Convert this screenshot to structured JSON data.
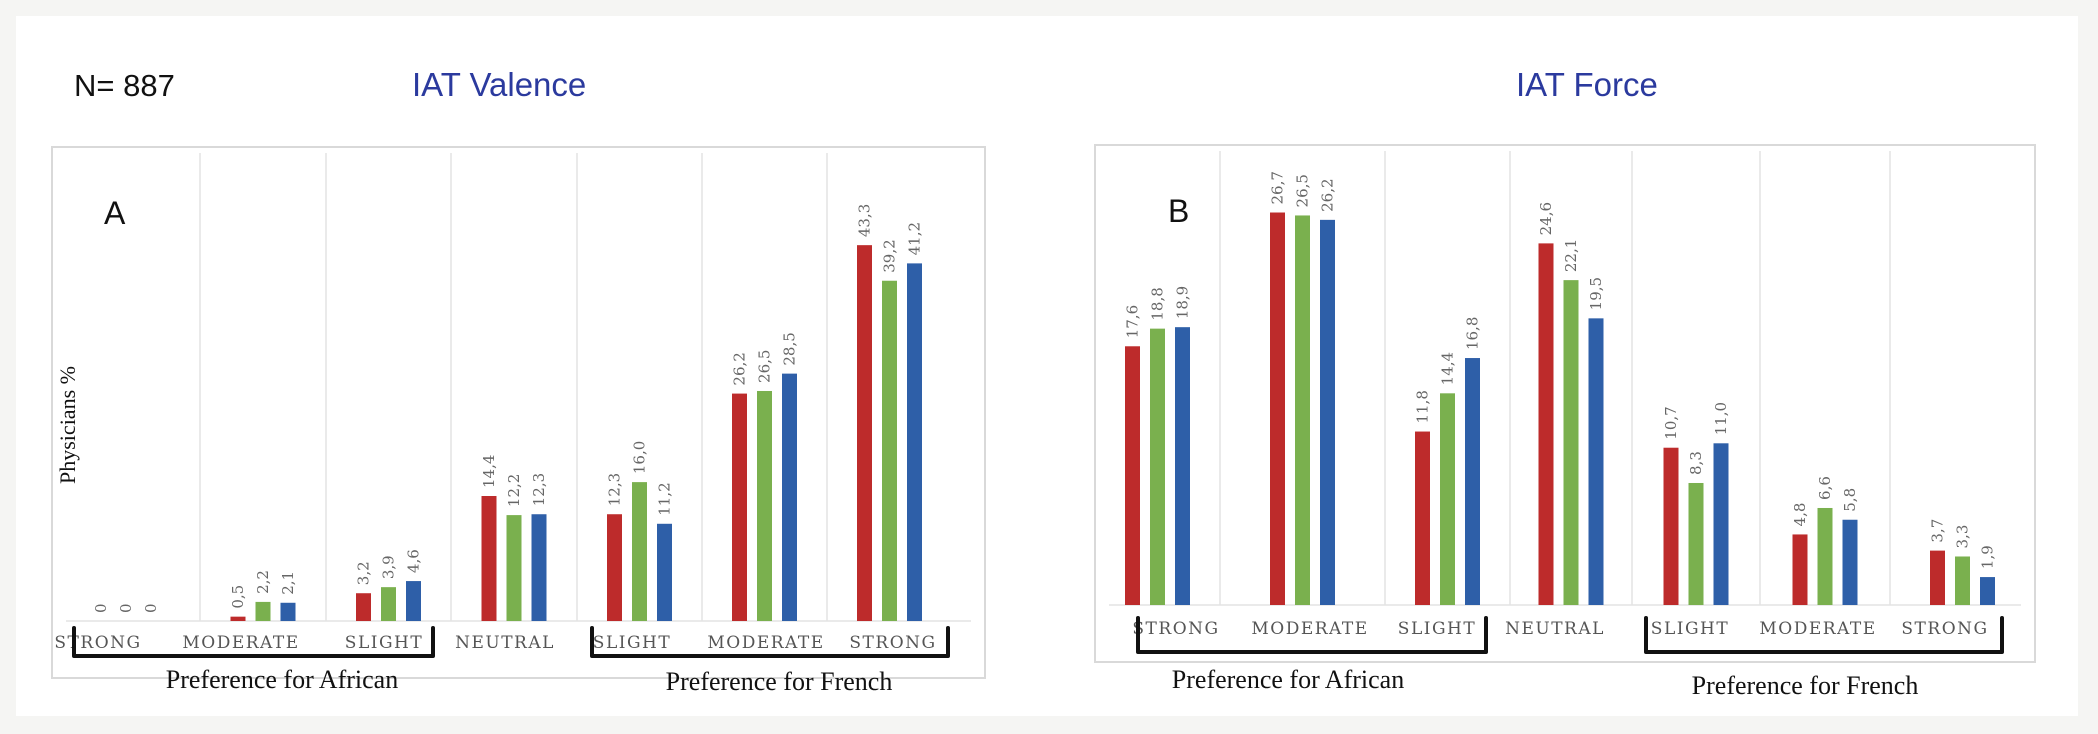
{
  "header": {
    "n_label": "N= 887",
    "title_a": "IAT Valence",
    "title_b": "IAT Force"
  },
  "colors": {
    "series": [
      "#bd2b2b",
      "#7ab04e",
      "#2e5fa8"
    ]
  },
  "chart_data": [
    {
      "type": "bar",
      "panel": "A",
      "title": "IAT Valence",
      "ylabel": "Physicians %",
      "categories": [
        "STRONG",
        "MODERATE",
        "SLIGHT",
        "NEUTRAL",
        "SLIGHT",
        "MODERATE",
        "STRONG"
      ],
      "groups": [
        "Preference for African",
        "Preference for French"
      ],
      "series": [
        {
          "values": [
            0,
            0.5,
            3.2,
            14.4,
            12.3,
            26.2,
            43.3
          ],
          "labels": [
            "0",
            "0,5",
            "3,2",
            "14,4",
            "12,3",
            "26,2",
            "43,3"
          ]
        },
        {
          "values": [
            0,
            2.2,
            3.9,
            12.2,
            16.0,
            26.5,
            39.2
          ],
          "labels": [
            "0",
            "2,2",
            "3,9",
            "12,2",
            "16,0",
            "26,5",
            "39,2"
          ]
        },
        {
          "values": [
            0,
            2.1,
            4.6,
            12.3,
            11.2,
            28.5,
            41.2
          ],
          "labels": [
            "0",
            "2,1",
            "4,6",
            "12,3",
            "11,2",
            "28,5",
            "41,2"
          ]
        }
      ],
      "ylim": [
        0,
        50
      ],
      "grid": "vertical"
    },
    {
      "type": "bar",
      "panel": "B",
      "title": "IAT Force",
      "categories": [
        "STRONG",
        "MODERATE",
        "SLIGHT",
        "NEUTRAL",
        "SLIGHT",
        "MODERATE",
        "STRONG"
      ],
      "groups": [
        "Preference for African",
        "Preference for French"
      ],
      "series": [
        {
          "values": [
            17.6,
            26.7,
            11.8,
            24.6,
            10.7,
            4.8,
            3.7
          ],
          "labels": [
            "17,6",
            "26,7",
            "11,8",
            "24,6",
            "10,7",
            "4,8",
            "3,7"
          ]
        },
        {
          "values": [
            18.8,
            26.5,
            14.4,
            22.1,
            8.3,
            6.6,
            3.3
          ],
          "labels": [
            "18,8",
            "26,5",
            "14,4",
            "22,1",
            "8,3",
            "6,6",
            "3,3"
          ]
        },
        {
          "values": [
            18.9,
            26.2,
            16.8,
            19.5,
            11.0,
            5.8,
            1.9
          ],
          "labels": [
            "18,9",
            "26,2",
            "16,8",
            "19,5",
            "11,0",
            "5,8",
            "1,9"
          ]
        }
      ],
      "ylim": [
        0,
        30
      ],
      "grid": "vertical"
    }
  ]
}
